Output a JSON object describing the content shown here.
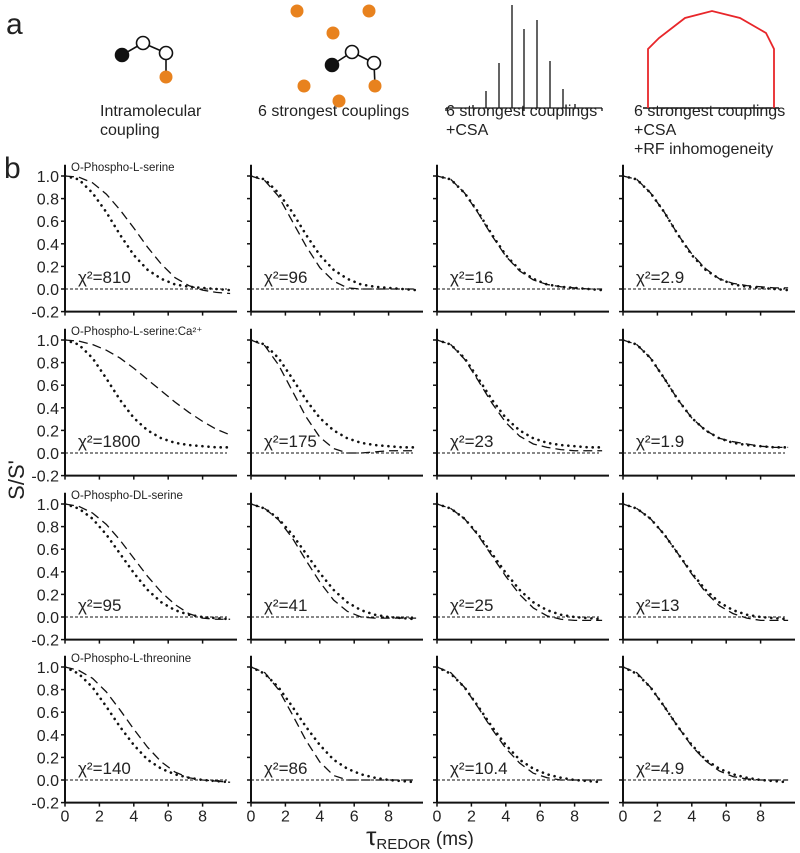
{
  "panel_labels": {
    "a": "a",
    "b": "b"
  },
  "captions": [
    "Intramolecular\ncoupling",
    "6 strongest couplings",
    "6 strongest couplings\n+CSA",
    "6 strongest couplings\n+CSA\n+RF inhomogeneity"
  ],
  "colors": {
    "orange": "#E8821E",
    "red": "#E8262A",
    "ink": "#222222"
  },
  "chart_data": {
    "type": "line",
    "xlabel": "τREDOR (ms)",
    "xlabel_main": "τ",
    "xlabel_sub": "REDOR",
    "xlabel_unit": " (ms)",
    "ylabel": "S/S'",
    "xlim": [
      0,
      10
    ],
    "ylim": [
      -0.2,
      1.0
    ],
    "xticks": [
      "0",
      "2",
      "4",
      "6",
      "8"
    ],
    "yticks": [
      "1.0",
      "0.8",
      "0.6",
      "0.4",
      "0.2",
      "0.0",
      "-0.2"
    ],
    "x": [
      0,
      0.8,
      1.6,
      2.4,
      3.2,
      4.0,
      4.8,
      5.6,
      6.4,
      7.2,
      8.0,
      8.8,
      9.6
    ],
    "legend": {
      "experiment": "dotted",
      "simulation": "dashed"
    },
    "rows": [
      {
        "compound": "O-Phospho-L-serine",
        "experiment": [
          1.0,
          0.97,
          0.85,
          0.68,
          0.48,
          0.3,
          0.17,
          0.09,
          0.04,
          0.02,
          0.01,
          0.0,
          -0.01
        ],
        "panels": [
          {
            "chi2": "χ²=810",
            "simulation": [
              1.0,
              0.99,
              0.94,
              0.84,
              0.7,
              0.54,
              0.37,
              0.22,
              0.1,
              0.03,
              -0.01,
              -0.03,
              -0.04
            ]
          },
          {
            "chi2": "χ²=96",
            "simulation": [
              1.0,
              0.96,
              0.82,
              0.6,
              0.38,
              0.19,
              0.07,
              0.01,
              0.0,
              0.0,
              0.0,
              0.0,
              0.0
            ]
          },
          {
            "chi2": "χ²=16",
            "simulation": [
              1.0,
              0.97,
              0.85,
              0.67,
              0.47,
              0.29,
              0.16,
              0.08,
              0.04,
              0.02,
              0.01,
              0.0,
              0.0
            ]
          },
          {
            "chi2": "χ²=2.9",
            "simulation": [
              1.0,
              0.97,
              0.85,
              0.68,
              0.48,
              0.31,
              0.18,
              0.09,
              0.05,
              0.03,
              0.02,
              0.01,
              0.01
            ]
          }
        ]
      },
      {
        "compound": "O-Phospho-L-serine:Ca²⁺",
        "experiment": [
          1.0,
          0.96,
          0.84,
          0.66,
          0.47,
          0.31,
          0.2,
          0.13,
          0.09,
          0.07,
          0.06,
          0.05,
          0.05
        ],
        "panels": [
          {
            "chi2": "χ²=1800",
            "simulation": [
              1.0,
              0.99,
              0.96,
              0.91,
              0.84,
              0.75,
              0.65,
              0.55,
              0.45,
              0.36,
              0.28,
              0.21,
              0.16
            ]
          },
          {
            "chi2": "χ²=175",
            "simulation": [
              1.0,
              0.95,
              0.78,
              0.55,
              0.32,
              0.14,
              0.04,
              0.0,
              0.0,
              0.01,
              0.02,
              0.02,
              0.02
            ]
          },
          {
            "chi2": "χ²=23",
            "simulation": [
              1.0,
              0.96,
              0.83,
              0.64,
              0.44,
              0.27,
              0.15,
              0.08,
              0.05,
              0.03,
              0.02,
              0.02,
              0.02
            ]
          },
          {
            "chi2": "χ²=1.9",
            "simulation": [
              1.0,
              0.96,
              0.84,
              0.66,
              0.47,
              0.31,
              0.2,
              0.13,
              0.1,
              0.08,
              0.06,
              0.05,
              0.05
            ]
          }
        ]
      },
      {
        "compound": "O-Phospho-DL-serine",
        "experiment": [
          1.0,
          0.96,
          0.87,
          0.73,
          0.56,
          0.39,
          0.24,
          0.13,
          0.06,
          0.02,
          0.0,
          -0.01,
          -0.02
        ],
        "panels": [
          {
            "chi2": "χ²=95",
            "simulation": [
              1.0,
              0.98,
              0.92,
              0.82,
              0.68,
              0.52,
              0.36,
              0.22,
              0.11,
              0.03,
              -0.01,
              -0.02,
              -0.02
            ]
          },
          {
            "chi2": "χ²=41",
            "simulation": [
              1.0,
              0.96,
              0.86,
              0.7,
              0.5,
              0.31,
              0.15,
              0.05,
              0.0,
              -0.01,
              -0.01,
              -0.01,
              -0.01
            ]
          },
          {
            "chi2": "χ²=25",
            "simulation": [
              1.0,
              0.96,
              0.87,
              0.72,
              0.54,
              0.36,
              0.2,
              0.08,
              0.01,
              -0.02,
              -0.03,
              -0.03,
              -0.03
            ]
          },
          {
            "chi2": "χ²=13",
            "simulation": [
              1.0,
              0.96,
              0.87,
              0.73,
              0.56,
              0.38,
              0.22,
              0.1,
              0.03,
              -0.01,
              -0.03,
              -0.03,
              -0.03
            ]
          }
        ]
      },
      {
        "compound": "O-Phospho-L-threonine",
        "experiment": [
          1.0,
          0.94,
          0.82,
          0.65,
          0.47,
          0.31,
          0.18,
          0.1,
          0.05,
          0.02,
          0.0,
          -0.01,
          -0.02
        ],
        "panels": [
          {
            "chi2": "χ²=140",
            "simulation": [
              1.0,
              0.97,
              0.9,
              0.78,
              0.62,
              0.45,
              0.29,
              0.16,
              0.07,
              0.02,
              0.0,
              -0.01,
              -0.02
            ]
          },
          {
            "chi2": "χ²=86",
            "simulation": [
              1.0,
              0.95,
              0.8,
              0.58,
              0.35,
              0.16,
              0.04,
              0.0,
              0.0,
              0.0,
              0.0,
              0.0,
              0.0
            ]
          },
          {
            "chi2": "χ²=10.4",
            "simulation": [
              1.0,
              0.95,
              0.82,
              0.64,
              0.45,
              0.28,
              0.15,
              0.06,
              0.02,
              0.0,
              0.0,
              0.0,
              0.0
            ]
          },
          {
            "chi2": "χ²=4.9",
            "simulation": [
              1.0,
              0.95,
              0.82,
              0.65,
              0.47,
              0.3,
              0.17,
              0.08,
              0.03,
              0.01,
              0.0,
              0.0,
              0.0
            ]
          }
        ]
      }
    ]
  }
}
